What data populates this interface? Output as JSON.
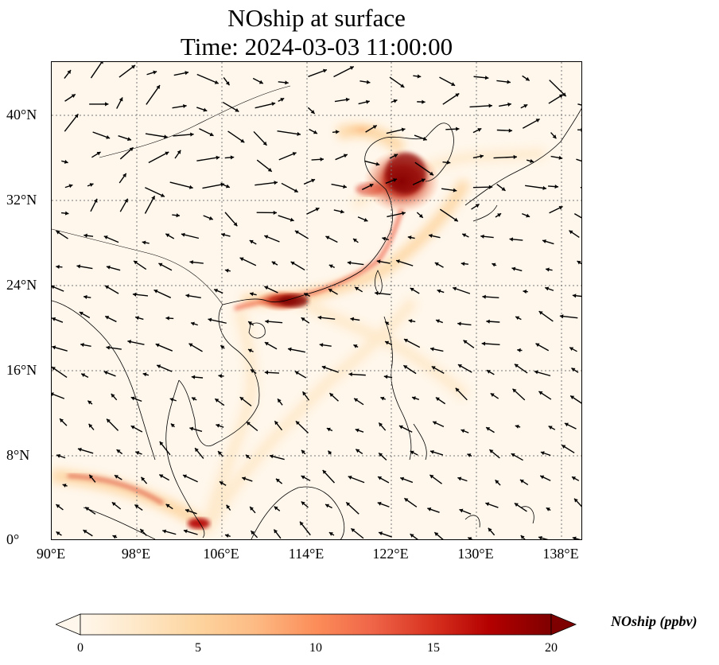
{
  "title": {
    "line1": "NOship at surface",
    "line2": "Time: 2024-03-03 11:00:00"
  },
  "map": {
    "lon_range": [
      90,
      140
    ],
    "lat_range": [
      0,
      45
    ],
    "lon_ticks": [
      "90°E",
      "98°E",
      "106°E",
      "114°E",
      "122°E",
      "130°E",
      "138°E"
    ],
    "lat_ticks": [
      "0°",
      "8°N",
      "16°N",
      "24°N",
      "32°N",
      "40°N"
    ],
    "gridlines": "dotted",
    "overlay": "wind vectors",
    "colormap": "OrRd"
  },
  "colorbar": {
    "label": "NOship (ppbv)",
    "ticks": [
      "0",
      "5",
      "10",
      "15",
      "20"
    ],
    "min": 0,
    "max": 20,
    "extend": "both",
    "colors": [
      "#fff7ec",
      "#fee8c8",
      "#fdd49e",
      "#fdbb84",
      "#fc8d59",
      "#ef6548",
      "#d7301f",
      "#b30000",
      "#7f0000"
    ]
  }
}
